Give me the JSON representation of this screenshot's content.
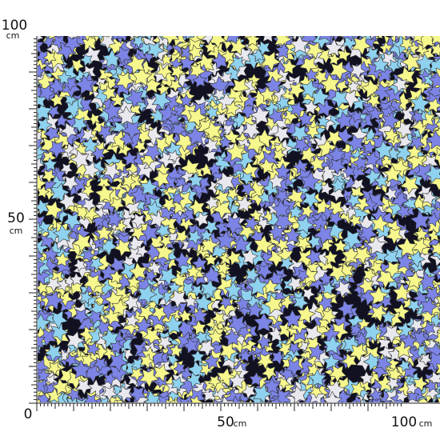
{
  "ruler": {
    "left": [
      {
        "number": "100",
        "unit": "cm"
      },
      {
        "number": "50",
        "unit": "cm"
      },
      {
        "number": "0"
      }
    ],
    "bottom": [
      {
        "number": "50",
        "unit": "cm"
      },
      {
        "number": "100",
        "unit": "cm"
      }
    ]
  }
}
